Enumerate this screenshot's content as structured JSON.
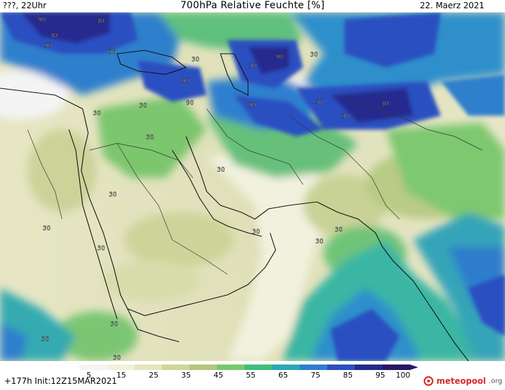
{
  "header": {
    "left": "???, 22Uhr",
    "title": "700hPa Relative Feuchte [%]",
    "date": "22. Maerz 2021"
  },
  "footer": {
    "init": "+177h  Init:12Z15MAR2021",
    "logo_text": "meteopool",
    "logo_domain": ".org",
    "logo_icon": "meteopool-logo-icon"
  },
  "colorbar": {
    "ticks": [
      "5",
      "15",
      "25",
      "35",
      "45",
      "55",
      "65",
      "75",
      "85",
      "95",
      "100"
    ],
    "colors": [
      "#f4f4f4",
      "#f1f1dc",
      "#e5e6bf",
      "#cfd59b",
      "#b1c77a",
      "#78c86e",
      "#3fbe7d",
      "#29a9b5",
      "#2e7fcc",
      "#2a4fc0",
      "#262a8e",
      "#2a1765"
    ]
  },
  "map": {
    "isoline_labels": [
      "90",
      "30",
      "90",
      "30",
      "90",
      "30",
      "90",
      "30",
      "90",
      "30",
      "90",
      "30",
      "30",
      "30",
      "90",
      "30",
      "30",
      "30",
      "30",
      "30",
      "30",
      "30",
      "30",
      "30",
      "30",
      "30",
      "30",
      "30"
    ]
  }
}
